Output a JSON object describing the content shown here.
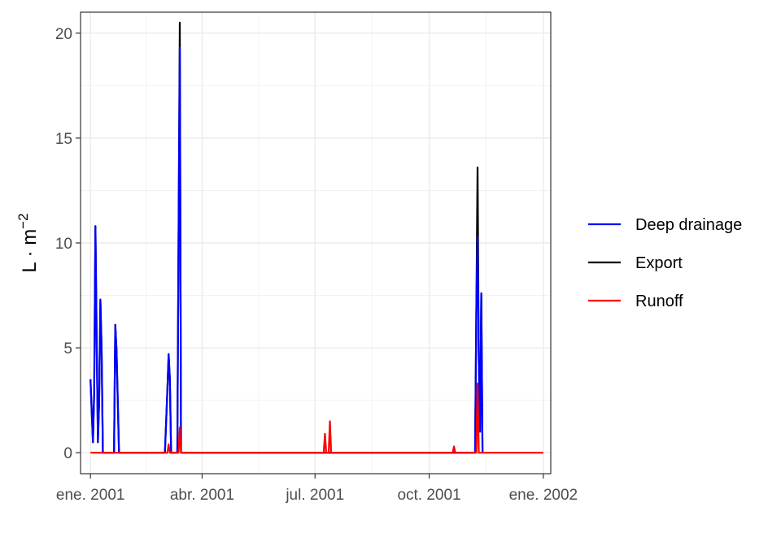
{
  "chart_data": {
    "type": "line",
    "title": "",
    "xlabel": "",
    "ylabel": "L·m⁻²",
    "ylabel_parts": {
      "base": "L · m",
      "sup": "−2"
    },
    "xlim": [
      "2000-12-24",
      "2002-01-07"
    ],
    "ylim": [
      -1,
      21
    ],
    "x_ticks": [
      {
        "date": "2001-01-01",
        "label": "ene. 2001"
      },
      {
        "date": "2001-04-01",
        "label": "abr. 2001"
      },
      {
        "date": "2001-07-01",
        "label": "jul. 2001"
      },
      {
        "date": "2001-10-01",
        "label": "oct. 2001"
      },
      {
        "date": "2002-01-01",
        "label": "ene. 2002"
      }
    ],
    "y_ticks": [
      0,
      5,
      10,
      15,
      20
    ],
    "grid": true,
    "legend_position": "right",
    "series": [
      {
        "name": "Export",
        "color": "#000000",
        "points": [
          [
            "2001-01-01",
            3.5
          ],
          [
            "2001-01-02",
            2.0
          ],
          [
            "2001-01-03",
            0.5
          ],
          [
            "2001-01-04",
            2.9
          ],
          [
            "2001-01-05",
            10.8
          ],
          [
            "2001-01-06",
            5.4
          ],
          [
            "2001-01-07",
            0.5
          ],
          [
            "2001-01-08",
            2.5
          ],
          [
            "2001-01-09",
            7.3
          ],
          [
            "2001-01-10",
            4.9
          ],
          [
            "2001-01-11",
            0
          ],
          [
            "2001-01-20",
            0
          ],
          [
            "2001-01-21",
            6.1
          ],
          [
            "2001-01-22",
            4.9
          ],
          [
            "2001-01-23",
            2.5
          ],
          [
            "2001-01-24",
            0
          ],
          [
            "2001-03-02",
            0
          ],
          [
            "2001-03-03",
            1.5
          ],
          [
            "2001-03-04",
            3.0
          ],
          [
            "2001-03-05",
            4.7
          ],
          [
            "2001-03-06",
            3.5
          ],
          [
            "2001-03-07",
            0
          ],
          [
            "2001-03-12",
            0
          ],
          [
            "2001-03-13",
            10.3
          ],
          [
            "2001-03-14",
            20.5
          ],
          [
            "2001-03-15",
            0
          ],
          [
            "2001-11-07",
            0
          ],
          [
            "2001-11-08",
            6.8
          ],
          [
            "2001-11-09",
            13.6
          ],
          [
            "2001-11-10",
            4.3
          ],
          [
            "2001-11-11",
            1.0
          ],
          [
            "2001-11-12",
            7.6
          ],
          [
            "2001-11-13",
            0
          ]
        ]
      },
      {
        "name": "Deep drainage",
        "color": "#0000ff",
        "points": [
          [
            "2001-01-01",
            3.5
          ],
          [
            "2001-01-02",
            2.0
          ],
          [
            "2001-01-03",
            0.5
          ],
          [
            "2001-01-04",
            2.9
          ],
          [
            "2001-01-05",
            10.8
          ],
          [
            "2001-01-06",
            5.4
          ],
          [
            "2001-01-07",
            0.5
          ],
          [
            "2001-01-08",
            2.5
          ],
          [
            "2001-01-09",
            7.3
          ],
          [
            "2001-01-10",
            4.9
          ],
          [
            "2001-01-11",
            0
          ],
          [
            "2001-01-20",
            0
          ],
          [
            "2001-01-21",
            6.1
          ],
          [
            "2001-01-22",
            4.9
          ],
          [
            "2001-01-23",
            2.5
          ],
          [
            "2001-01-24",
            0
          ],
          [
            "2001-03-02",
            0
          ],
          [
            "2001-03-03",
            1.5
          ],
          [
            "2001-03-04",
            3.0
          ],
          [
            "2001-03-05",
            4.7
          ],
          [
            "2001-03-06",
            3.5
          ],
          [
            "2001-03-07",
            0
          ],
          [
            "2001-03-12",
            0
          ],
          [
            "2001-03-13",
            10.3
          ],
          [
            "2001-03-14",
            19.3
          ],
          [
            "2001-03-15",
            0
          ],
          [
            "2001-11-07",
            0
          ],
          [
            "2001-11-08",
            6.8
          ],
          [
            "2001-11-09",
            10.3
          ],
          [
            "2001-11-10",
            4.3
          ],
          [
            "2001-11-11",
            1.0
          ],
          [
            "2001-11-12",
            7.6
          ],
          [
            "2001-11-13",
            0
          ]
        ]
      },
      {
        "name": "Runoff",
        "color": "#ff0000",
        "points": [
          [
            "2001-01-01",
            0
          ],
          [
            "2001-03-04",
            0
          ],
          [
            "2001-03-05",
            0.4
          ],
          [
            "2001-03-06",
            0
          ],
          [
            "2001-03-13",
            0
          ],
          [
            "2001-03-14",
            1.2
          ],
          [
            "2001-03-15",
            0
          ],
          [
            "2001-07-08",
            0
          ],
          [
            "2001-07-09",
            0.9
          ],
          [
            "2001-07-10",
            0
          ],
          [
            "2001-07-12",
            0
          ],
          [
            "2001-07-13",
            1.5
          ],
          [
            "2001-07-14",
            0
          ],
          [
            "2001-10-20",
            0
          ],
          [
            "2001-10-21",
            0.3
          ],
          [
            "2001-10-22",
            0
          ],
          [
            "2001-11-08",
            0
          ],
          [
            "2001-11-09",
            3.3
          ],
          [
            "2001-11-10",
            0
          ],
          [
            "2002-01-01",
            0
          ]
        ]
      }
    ],
    "legend_order": [
      "Deep drainage",
      "Export",
      "Runoff"
    ]
  }
}
